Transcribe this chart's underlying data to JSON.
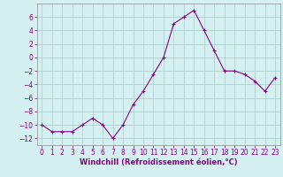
{
  "x": [
    0,
    1,
    2,
    3,
    4,
    5,
    6,
    7,
    8,
    9,
    10,
    11,
    12,
    13,
    14,
    15,
    16,
    17,
    18,
    19,
    20,
    21,
    22,
    23
  ],
  "y": [
    -10,
    -11,
    -11,
    -11,
    -10,
    -9,
    -10,
    -12,
    -10,
    -7,
    -5,
    -2.5,
    0,
    5,
    6,
    7,
    4,
    1,
    -2,
    -2,
    -2.5,
    -3.5,
    -5,
    -3
  ],
  "line_color": "#880088",
  "marker": "+",
  "marker_color": "#880088",
  "bg_color": "#d4f0f0",
  "grid_color": "#aacccc",
  "xlabel": "Windchill (Refroidissement éolien,°C)",
  "xlabel_fontsize": 6.0,
  "tick_color": "#880088",
  "ylim": [
    -13,
    8
  ],
  "xlim": [
    -0.5,
    23.5
  ],
  "yticks": [
    -12,
    -10,
    -8,
    -6,
    -4,
    -2,
    0,
    2,
    4,
    6
  ],
  "xticks": [
    0,
    1,
    2,
    3,
    4,
    5,
    6,
    7,
    8,
    9,
    10,
    11,
    12,
    13,
    14,
    15,
    16,
    17,
    18,
    19,
    20,
    21,
    22,
    23
  ],
  "tick_fontsize": 5.5
}
